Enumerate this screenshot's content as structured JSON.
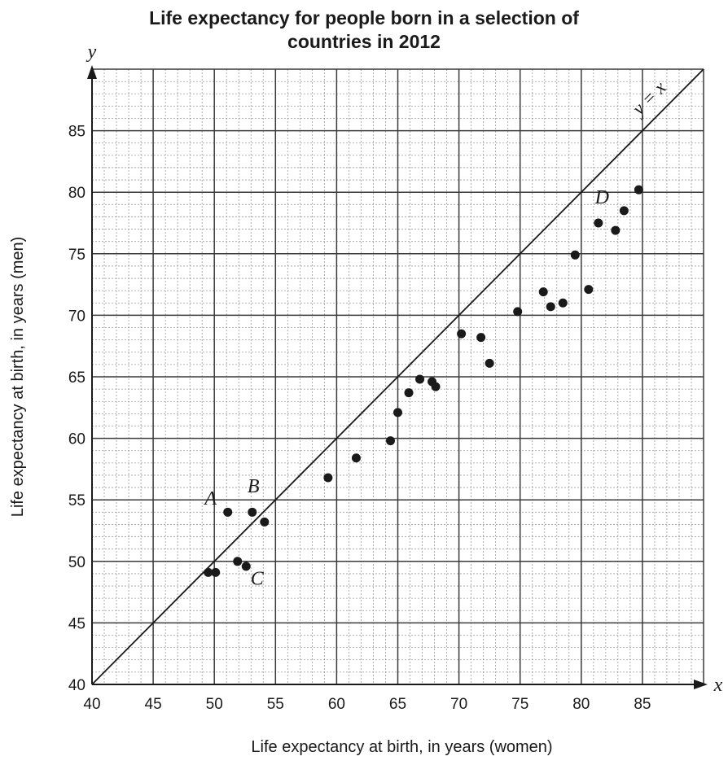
{
  "chart_data": {
    "type": "scatter",
    "title_lines": [
      "Life expectancy for people born in a selection of",
      "countries in 2012"
    ],
    "xlabel": "Life expectancy at birth, in years (women)",
    "ylabel": "Life expectancy at birth, in years (men)",
    "x_axis_letter": "x",
    "y_axis_letter": "y",
    "xlim": [
      40,
      90
    ],
    "ylim": [
      40,
      90
    ],
    "x_ticks": [
      "40",
      "45",
      "50",
      "55",
      "60",
      "65",
      "70",
      "75",
      "80",
      "85"
    ],
    "y_ticks": [
      "40",
      "45",
      "50",
      "55",
      "60",
      "65",
      "70",
      "75",
      "80",
      "85"
    ],
    "grid": true,
    "reference_line": {
      "label": "y = x",
      "from": [
        40,
        40
      ],
      "to": [
        90,
        90
      ]
    },
    "points": [
      {
        "x": 49.5,
        "y": 49.1
      },
      {
        "x": 50.1,
        "y": 49.1
      },
      {
        "x": 51.1,
        "y": 54.0
      },
      {
        "x": 51.9,
        "y": 50.0
      },
      {
        "x": 52.6,
        "y": 49.6
      },
      {
        "x": 53.1,
        "y": 54.0
      },
      {
        "x": 54.1,
        "y": 53.2
      },
      {
        "x": 59.3,
        "y": 56.8
      },
      {
        "x": 61.6,
        "y": 58.4
      },
      {
        "x": 64.4,
        "y": 59.8
      },
      {
        "x": 65.0,
        "y": 62.1
      },
      {
        "x": 65.9,
        "y": 63.7
      },
      {
        "x": 66.8,
        "y": 64.8
      },
      {
        "x": 67.8,
        "y": 64.6
      },
      {
        "x": 68.1,
        "y": 64.2
      },
      {
        "x": 70.2,
        "y": 68.5
      },
      {
        "x": 71.8,
        "y": 68.2
      },
      {
        "x": 72.5,
        "y": 66.1
      },
      {
        "x": 74.8,
        "y": 70.3
      },
      {
        "x": 76.9,
        "y": 71.9
      },
      {
        "x": 77.5,
        "y": 70.7
      },
      {
        "x": 78.5,
        "y": 71.0
      },
      {
        "x": 79.5,
        "y": 74.9
      },
      {
        "x": 80.6,
        "y": 72.1
      },
      {
        "x": 81.4,
        "y": 77.5
      },
      {
        "x": 82.8,
        "y": 76.9
      },
      {
        "x": 83.5,
        "y": 78.5
      },
      {
        "x": 84.7,
        "y": 80.2
      }
    ],
    "point_labels": [
      {
        "text": "A",
        "x": 49.7,
        "y": 54.6
      },
      {
        "text": "B",
        "x": 53.2,
        "y": 55.6
      },
      {
        "text": "C",
        "x": 53.5,
        "y": 48.1
      },
      {
        "text": "D",
        "x": 81.7,
        "y": 79.1
      }
    ]
  }
}
